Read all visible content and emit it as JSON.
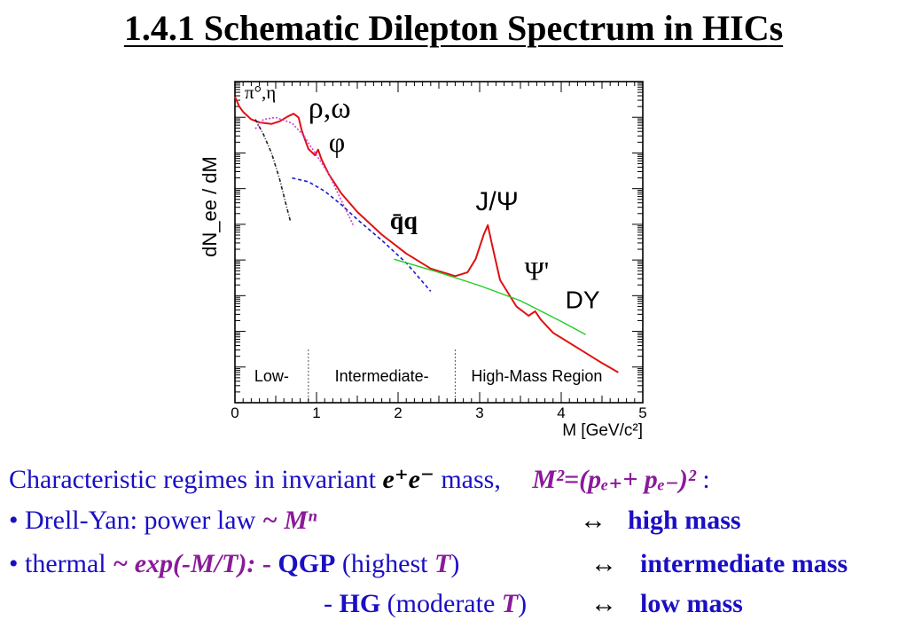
{
  "title": "1.4.1 Schematic Dilepton Spectrum in HICs",
  "chart_data": {
    "type": "line",
    "xlabel": "M [GeV/c²]",
    "ylabel": "dN_ee / dM",
    "xlim": [
      0,
      5
    ],
    "yscale": "log",
    "x_ticks": [
      "0",
      "1",
      "2",
      "3",
      "4",
      "5"
    ],
    "regions": [
      "Low-",
      "Intermediate-",
      "High-Mass Region"
    ],
    "region_boundaries": [
      0.9,
      2.7
    ],
    "annotations": {
      "pi_eta": "π°,η",
      "rho_omega": "ρ,ω",
      "phi": "φ",
      "qq": "q̄q",
      "jpsi": "J/Ψ",
      "psiprime": "Ψ'",
      "dy": "DY"
    },
    "series": [
      {
        "color": "#e01010",
        "x": [
          0.0,
          0.05,
          0.1,
          0.2,
          0.3,
          0.45,
          0.55,
          0.65,
          0.72,
          0.78,
          0.82,
          0.9,
          0.98,
          1.02,
          1.06,
          1.15,
          1.3,
          1.5,
          1.8,
          2.1,
          2.4,
          2.7,
          2.85,
          2.95,
          3.05,
          3.1,
          3.15,
          3.25,
          3.45,
          3.6,
          3.68,
          3.75,
          3.9,
          4.2,
          4.5,
          4.7
        ],
        "y": [
          9.6,
          9.35,
          9.2,
          9.0,
          8.92,
          8.88,
          8.95,
          9.08,
          9.15,
          9.05,
          8.7,
          8.22,
          8.05,
          8.2,
          7.95,
          7.55,
          7.05,
          6.55,
          5.95,
          5.45,
          5.05,
          4.85,
          4.95,
          5.3,
          5.95,
          6.2,
          5.7,
          4.75,
          4.05,
          3.8,
          3.92,
          3.7,
          3.35,
          2.95,
          2.55,
          2.3
        ]
      },
      {
        "color": "#222222",
        "x": [
          0.25,
          0.35,
          0.45,
          0.55,
          0.62,
          0.68
        ],
        "y": [
          9.0,
          8.6,
          8.1,
          7.4,
          6.8,
          6.3
        ]
      },
      {
        "color": "#d040d0",
        "x": [
          0.25,
          0.35,
          0.5,
          0.7,
          0.85,
          1.0,
          1.15,
          1.25,
          1.35,
          1.45
        ],
        "y": [
          8.75,
          9.0,
          9.05,
          8.9,
          8.55,
          8.05,
          7.55,
          7.1,
          6.65,
          6.2
        ]
      },
      {
        "color": "#1a1acc",
        "x": [
          0.7,
          0.9,
          1.1,
          1.3,
          1.5,
          1.8,
          2.1,
          2.4
        ],
        "y": [
          7.45,
          7.35,
          7.1,
          6.75,
          6.35,
          5.8,
          5.2,
          4.45
        ]
      },
      {
        "color": "#22cc22",
        "x": [
          1.95,
          2.5,
          3.0,
          3.5,
          4.0,
          4.3
        ],
        "y": [
          5.3,
          4.95,
          4.6,
          4.2,
          3.65,
          3.3
        ]
      }
    ]
  },
  "text": {
    "line1_a": "Characteristic regimes in invariant ",
    "line1_ee": "e⁺e⁻",
    "line1_b": " mass,",
    "line1_formula": "M²=(pₑ₊+ pₑ₋)²",
    "line1_colon": " :",
    "line2_a": "• Drell-Yan: power law ",
    "line2_b": "~ Mⁿ",
    "line2_arrow": "↔",
    "line2_target": "high mass",
    "line3_a": "• thermal ",
    "line3_b": "~ exp(-M/T):",
    "line3_c": " - ",
    "line3_qgp": "QGP",
    "line3_d": " (highest ",
    "line3_t": "T",
    "line3_e": ")",
    "line3_arrow": "↔",
    "line3_target": "intermediate mass",
    "line4_a": "- ",
    "line4_hg": "HG",
    "line4_b": " (moderate ",
    "line4_t": "T",
    "line4_c": ")",
    "line4_arrow": "↔",
    "line4_target": "low mass"
  }
}
